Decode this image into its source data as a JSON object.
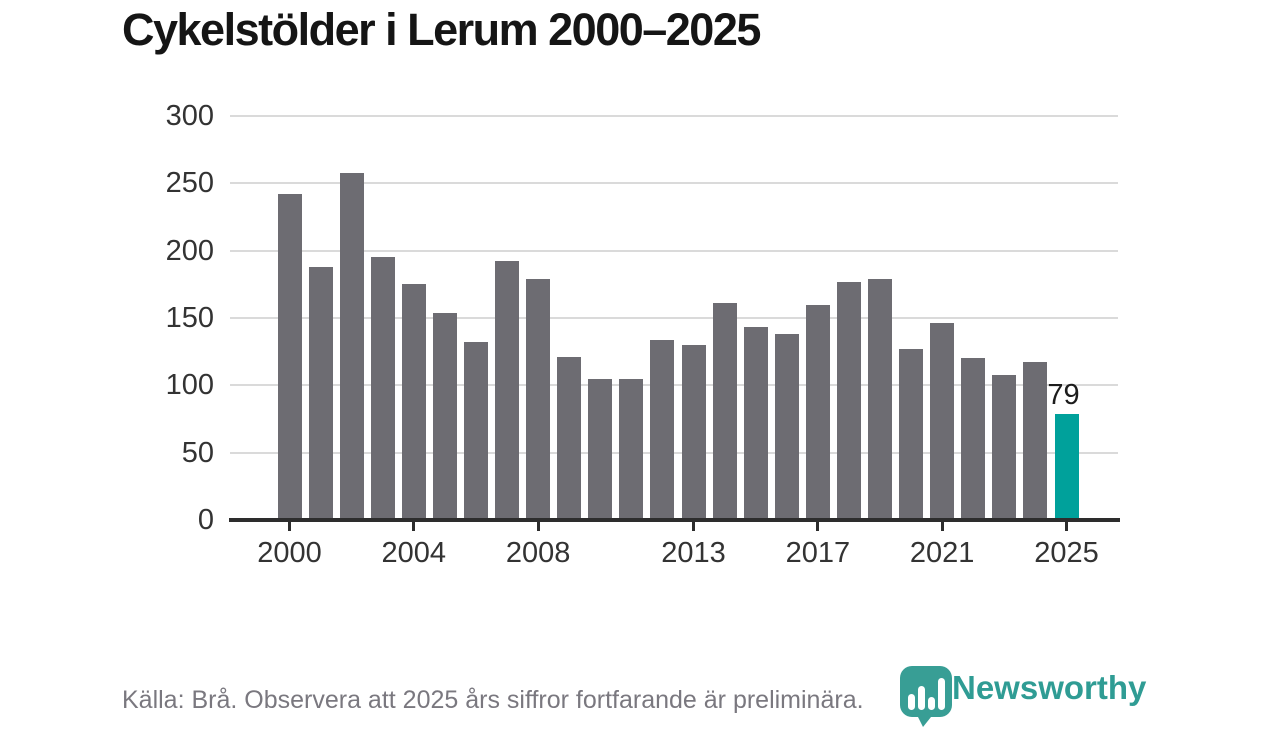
{
  "title": "Cykelstölder i Lerum 2000–2025",
  "footer": {
    "source_note": "Källa: Brå. Observera att 2025 års siffror fortfarande är preliminära."
  },
  "logo": {
    "text": "Newsworthy",
    "icon": "newsworthy-pin-bar-chart-icon"
  },
  "colors": {
    "bar": "#6d6c72",
    "highlight_bar": "#00a19b",
    "gridline": "#dadada",
    "axis": "#2d2d2d",
    "tick_label": "#333333",
    "title": "#151515",
    "footer_text": "#7a787f",
    "logo_teal": "#2f9c94",
    "value_label": "#1c1c1c"
  },
  "chart_data": {
    "type": "bar",
    "title": "Cykelstölder i Lerum 2000–2025",
    "xlabel": "",
    "ylabel": "",
    "x": [
      2000,
      2001,
      2002,
      2003,
      2004,
      2005,
      2006,
      2007,
      2008,
      2009,
      2010,
      2011,
      2012,
      2013,
      2014,
      2015,
      2016,
      2017,
      2018,
      2019,
      2020,
      2021,
      2022,
      2023,
      2024,
      2025
    ],
    "values": [
      242,
      188,
      258,
      195,
      175,
      154,
      132,
      192,
      179,
      121,
      105,
      105,
      134,
      130,
      161,
      143,
      138,
      160,
      177,
      179,
      127,
      146,
      120,
      108,
      117,
      79
    ],
    "highlight_year": 2025,
    "highlight_value_label": "79",
    "ylim": [
      0,
      300
    ],
    "yticks": [
      0,
      50,
      100,
      150,
      200,
      250,
      300
    ],
    "xticks": [
      2000,
      2004,
      2008,
      2013,
      2017,
      2021,
      2025
    ],
    "grid": "horizontal",
    "legend": "none"
  }
}
